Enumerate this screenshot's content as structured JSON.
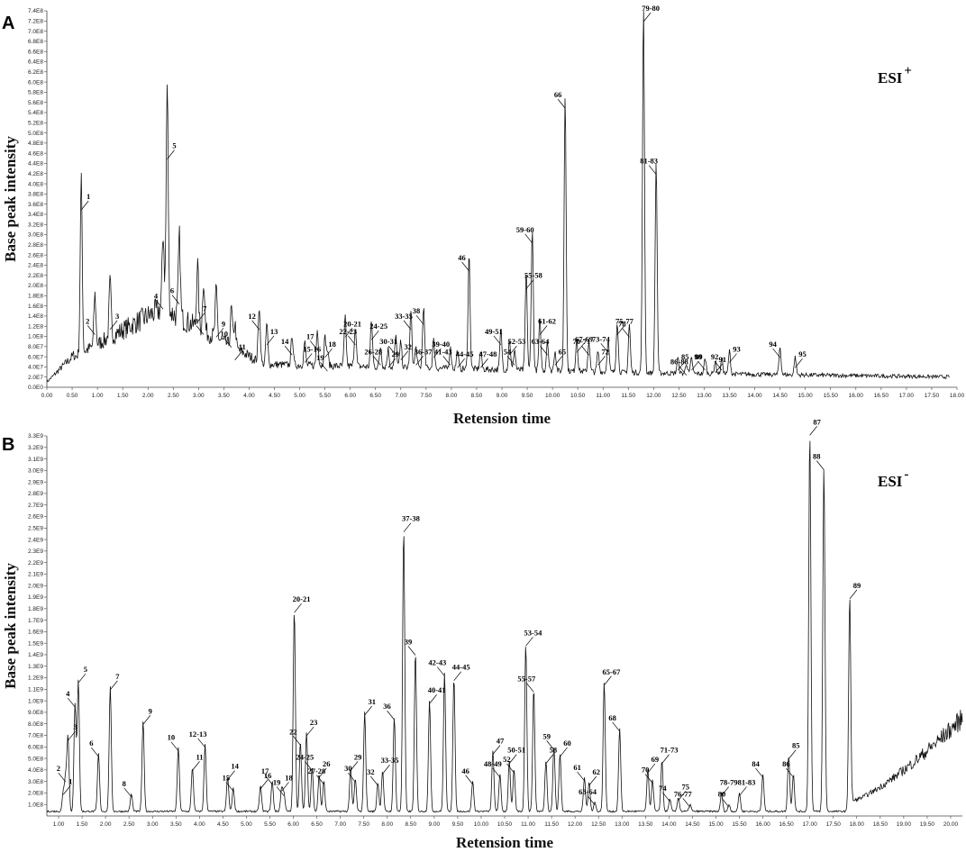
{
  "chart_data": [
    {
      "type": "line",
      "panel": "A",
      "mode": "ESI",
      "mode_sign": "+",
      "xlabel": "Retension time",
      "ylabel": "Base peak intensity",
      "xlim": [
        0,
        18
      ],
      "ylim": [
        0,
        740000000
      ],
      "xticks": [
        "0.00",
        "0.50",
        "1.00",
        "1.50",
        "2.00",
        "2.50",
        "3.00",
        "3.50",
        "4.00",
        "4.50",
        "5.00",
        "5.50",
        "6.00",
        "6.50",
        "7.00",
        "7.50",
        "8.00",
        "8.50",
        "9.00",
        "9.50",
        "10.00",
        "10.50",
        "11.00",
        "11.50",
        "12.00",
        "12.50",
        "13.00",
        "13.50",
        "14.00",
        "14.50",
        "15.00",
        "15.50",
        "16.00",
        "16.50",
        "17.00",
        "17.50",
        "18.00"
      ],
      "yticks": [
        "0.0E0",
        "2.0E7",
        "4.0E7",
        "6.0E7",
        "8.0E7",
        "1.0E8",
        "1.2E8",
        "1.4E8",
        "1.6E8",
        "1.8E8",
        "2.0E8",
        "2.2E8",
        "2.4E8",
        "2.6E8",
        "2.8E8",
        "3.0E8",
        "3.2E8",
        "3.4E8",
        "3.6E8",
        "3.8E8",
        "4.0E8",
        "4.2E8",
        "4.4E8",
        "4.6E8",
        "4.8E8",
        "5.0E8",
        "5.2E8",
        "5.4E8",
        "5.6E8",
        "5.8E8",
        "6.0E8",
        "6.2E8",
        "6.4E8",
        "6.6E8",
        "6.8E8",
        "7.0E8",
        "7.2E8",
        "7.4E8"
      ],
      "peaks": [
        {
          "label": "1",
          "x": 0.68,
          "y": 345000000
        },
        {
          "label": "2",
          "x": 0.95,
          "y": 100000000
        },
        {
          "label": "3",
          "x": 1.25,
          "y": 110000000
        },
        {
          "label": "4",
          "x": 2.3,
          "y": 150000000
        },
        {
          "label": "5",
          "x": 2.38,
          "y": 445000000
        },
        {
          "label": "6",
          "x": 2.62,
          "y": 160000000
        },
        {
          "label": "7",
          "x": 2.98,
          "y": 125000000
        },
        {
          "label": "8",
          "x": 3.1,
          "y": 100000000
        },
        {
          "label": "9",
          "x": 3.35,
          "y": 95000000
        },
        {
          "label": "10",
          "x": 3.65,
          "y": 75000000
        },
        {
          "label": "11",
          "x": 3.72,
          "y": 50000000
        },
        {
          "label": "12",
          "x": 4.2,
          "y": 110000000
        },
        {
          "label": "13",
          "x": 4.35,
          "y": 80000000
        },
        {
          "label": "14",
          "x": 4.85,
          "y": 60000000
        },
        {
          "label": "15-16",
          "x": 5.1,
          "y": 45000000
        },
        {
          "label": "17",
          "x": 5.35,
          "y": 70000000
        },
        {
          "label": "18",
          "x": 5.5,
          "y": 55000000
        },
        {
          "label": "19",
          "x": 5.55,
          "y": 28000000
        },
        {
          "label": "20-21",
          "x": 5.9,
          "y": 95000000
        },
        {
          "label": "22-23",
          "x": 6.1,
          "y": 80000000
        },
        {
          "label": "24-25",
          "x": 6.42,
          "y": 90000000
        },
        {
          "label": "26-28",
          "x": 6.6,
          "y": 40000000
        },
        {
          "label": "29",
          "x": 6.75,
          "y": 35000000
        },
        {
          "label": "30-31",
          "x": 6.9,
          "y": 60000000
        },
        {
          "label": "32",
          "x": 7.0,
          "y": 50000000
        },
        {
          "label": "33-35",
          "x": 7.2,
          "y": 110000000
        },
        {
          "label": "36-37",
          "x": 7.3,
          "y": 40000000
        },
        {
          "label": "38",
          "x": 7.45,
          "y": 120000000
        },
        {
          "label": "39-40",
          "x": 7.65,
          "y": 55000000
        },
        {
          "label": "41-43",
          "x": 7.98,
          "y": 40000000
        },
        {
          "label": "44-45",
          "x": 8.12,
          "y": 35000000
        },
        {
          "label": "46",
          "x": 8.35,
          "y": 225000000
        },
        {
          "label": "47-48",
          "x": 8.58,
          "y": 35000000
        },
        {
          "label": "49-51",
          "x": 8.98,
          "y": 80000000
        },
        {
          "label": "52-53",
          "x": 9.15,
          "y": 60000000
        },
        {
          "label": "54",
          "x": 9.25,
          "y": 40000000
        },
        {
          "label": "55-58",
          "x": 9.48,
          "y": 190000000
        },
        {
          "label": "59-60",
          "x": 9.6,
          "y": 280000000
        },
        {
          "label": "61-62",
          "x": 9.75,
          "y": 100000000
        },
        {
          "label": "63-64",
          "x": 9.9,
          "y": 60000000
        },
        {
          "label": "65",
          "x": 10.05,
          "y": 40000000
        },
        {
          "label": "66",
          "x": 10.25,
          "y": 545000000
        },
        {
          "label": "67-69",
          "x": 10.48,
          "y": 65000000
        },
        {
          "label": "70-71",
          "x": 10.72,
          "y": 60000000
        },
        {
          "label": "72",
          "x": 10.9,
          "y": 40000000
        },
        {
          "label": "73-74",
          "x": 11.1,
          "y": 65000000
        },
        {
          "label": "75-77",
          "x": 11.28,
          "y": 100000000
        },
        {
          "label": "78",
          "x": 11.52,
          "y": 95000000
        },
        {
          "label": "79-80",
          "x": 11.8,
          "y": 715000000
        },
        {
          "label": "81-83",
          "x": 12.05,
          "y": 415000000
        },
        {
          "label": "85",
          "x": 12.48,
          "y": 30000000
        },
        {
          "label": "86-88",
          "x": 12.65,
          "y": 20000000
        },
        {
          "label": "89",
          "x": 12.75,
          "y": 30000000
        },
        {
          "label": "90",
          "x": 13.02,
          "y": 30000000
        },
        {
          "label": "91",
          "x": 13.22,
          "y": 25000000
        },
        {
          "label": "92",
          "x": 13.35,
          "y": 30000000
        },
        {
          "label": "93",
          "x": 13.5,
          "y": 45000000
        },
        {
          "label": "94",
          "x": 14.5,
          "y": 55000000
        },
        {
          "label": "95",
          "x": 14.8,
          "y": 35000000
        }
      ]
    },
    {
      "type": "line",
      "panel": "B",
      "mode": "ESI",
      "mode_sign": "-",
      "xlabel": "Retension time",
      "ylabel": "Base peak intensity",
      "xlim": [
        0.75,
        20.25
      ],
      "ylim": [
        0,
        3300000000
      ],
      "xticks": [
        "1.00",
        "1.50",
        "2.00",
        "2.50",
        "3.00",
        "3.50",
        "4.00",
        "4.50",
        "5.00",
        "5.50",
        "6.00",
        "6.50",
        "7.00",
        "7.50",
        "8.00",
        "8.50",
        "9.00",
        "9.50",
        "10.00",
        "10.50",
        "11.00",
        "11.50",
        "12.00",
        "12.50",
        "13.00",
        "13.50",
        "14.00",
        "14.50",
        "15.00",
        "15.50",
        "16.00",
        "16.50",
        "17.00",
        "17.50",
        "18.00",
        "18.50",
        "19.00",
        "19.50",
        "20.00"
      ],
      "yticks": [
        "1.0E8",
        "2.0E8",
        "3.0E8",
        "4.0E8",
        "5.0E8",
        "6.0E8",
        "7.0E8",
        "8.0E8",
        "9.0E8",
        "1.0E9",
        "1.1E9",
        "1.2E9",
        "1.3E9",
        "1.4E9",
        "1.5E9",
        "1.6E9",
        "1.7E9",
        "1.8E9",
        "1.9E9",
        "2.0E9",
        "2.1E9",
        "2.2E9",
        "2.3E9",
        "2.4E9",
        "2.5E9",
        "2.6E9",
        "2.7E9",
        "2.8E9",
        "2.9E9",
        "3.0E9",
        "3.1E9",
        "3.2E9",
        "3.3E9"
      ],
      "peaks": [
        {
          "label": "1",
          "x": 1.1,
          "y": 170000000
        },
        {
          "label": "2",
          "x": 1.15,
          "y": 280000000
        },
        {
          "label": "3",
          "x": 1.2,
          "y": 640000000
        },
        {
          "label": "4",
          "x": 1.35,
          "y": 930000000
        },
        {
          "label": "5",
          "x": 1.42,
          "y": 1140000000
        },
        {
          "label": "6",
          "x": 1.85,
          "y": 500000000
        },
        {
          "label": "7",
          "x": 2.1,
          "y": 1080000000
        },
        {
          "label": "8",
          "x": 2.55,
          "y": 150000000
        },
        {
          "label": "9",
          "x": 2.8,
          "y": 780000000
        },
        {
          "label": "10",
          "x": 3.55,
          "y": 550000000
        },
        {
          "label": "11",
          "x": 3.85,
          "y": 380000000
        },
        {
          "label": "12-13",
          "x": 4.12,
          "y": 580000000
        },
        {
          "label": "14",
          "x": 4.6,
          "y": 300000000
        },
        {
          "label": "15",
          "x": 4.72,
          "y": 200000000
        },
        {
          "label": "16",
          "x": 5.3,
          "y": 220000000
        },
        {
          "label": "17",
          "x": 5.55,
          "y": 260000000
        },
        {
          "label": "18",
          "x": 5.75,
          "y": 200000000
        },
        {
          "label": "19",
          "x": 5.8,
          "y": 160000000
        },
        {
          "label": "20-21",
          "x": 6.02,
          "y": 1750000000
        },
        {
          "label": "22",
          "x": 6.15,
          "y": 600000000
        },
        {
          "label": "23",
          "x": 6.28,
          "y": 680000000
        },
        {
          "label": "24-25",
          "x": 6.4,
          "y": 380000000
        },
        {
          "label": "26",
          "x": 6.55,
          "y": 320000000
        },
        {
          "label": "27-28",
          "x": 6.65,
          "y": 260000000
        },
        {
          "label": "29",
          "x": 7.22,
          "y": 380000000
        },
        {
          "label": "30",
          "x": 7.32,
          "y": 280000000
        },
        {
          "label": "31",
          "x": 7.52,
          "y": 860000000
        },
        {
          "label": "32",
          "x": 7.8,
          "y": 250000000
        },
        {
          "label": "33-35",
          "x": 7.9,
          "y": 350000000
        },
        {
          "label": "36",
          "x": 8.15,
          "y": 820000000
        },
        {
          "label": "37-38",
          "x": 8.35,
          "y": 2450000000
        },
        {
          "label": "39",
          "x": 8.6,
          "y": 1380000000
        },
        {
          "label": "40-41",
          "x": 8.9,
          "y": 960000000
        },
        {
          "label": "42-43",
          "x": 9.22,
          "y": 1200000000
        },
        {
          "label": "44-45",
          "x": 9.42,
          "y": 1160000000
        },
        {
          "label": "46",
          "x": 9.82,
          "y": 260000000
        },
        {
          "label": "47",
          "x": 10.25,
          "y": 520000000
        },
        {
          "label": "48-49",
          "x": 10.4,
          "y": 320000000
        },
        {
          "label": "50-51",
          "x": 10.6,
          "y": 440000000
        },
        {
          "label": "52",
          "x": 10.7,
          "y": 360000000
        },
        {
          "label": "53-54",
          "x": 10.95,
          "y": 1460000000
        },
        {
          "label": "55-57",
          "x": 11.12,
          "y": 1060000000
        },
        {
          "label": "58",
          "x": 11.38,
          "y": 440000000
        },
        {
          "label": "59",
          "x": 11.55,
          "y": 560000000
        },
        {
          "label": "60",
          "x": 11.68,
          "y": 500000000
        },
        {
          "label": "61",
          "x": 12.2,
          "y": 290000000
        },
        {
          "label": "62",
          "x": 12.3,
          "y": 250000000
        },
        {
          "label": "63-64",
          "x": 12.42,
          "y": 80000000
        },
        {
          "label": "65-67",
          "x": 12.62,
          "y": 1120000000
        },
        {
          "label": "68",
          "x": 12.95,
          "y": 720000000
        },
        {
          "label": "69",
          "x": 13.55,
          "y": 360000000
        },
        {
          "label": "70",
          "x": 13.65,
          "y": 270000000
        },
        {
          "label": "71-73",
          "x": 13.85,
          "y": 440000000
        },
        {
          "label": "74",
          "x": 14.02,
          "y": 110000000
        },
        {
          "label": "75",
          "x": 14.2,
          "y": 120000000
        },
        {
          "label": "76-77",
          "x": 14.45,
          "y": 60000000
        },
        {
          "label": "78-79",
          "x": 15.12,
          "y": 160000000
        },
        {
          "label": "80",
          "x": 15.28,
          "y": 60000000
        },
        {
          "label": "81-83",
          "x": 15.5,
          "y": 160000000
        },
        {
          "label": "84",
          "x": 16.0,
          "y": 320000000
        },
        {
          "label": "85",
          "x": 16.55,
          "y": 480000000
        },
        {
          "label": "86",
          "x": 16.65,
          "y": 320000000
        },
        {
          "label": "87",
          "x": 17.0,
          "y": 3290000000
        },
        {
          "label": "88",
          "x": 17.3,
          "y": 2990000000
        },
        {
          "label": "89",
          "x": 17.85,
          "y": 1870000000
        }
      ]
    }
  ]
}
